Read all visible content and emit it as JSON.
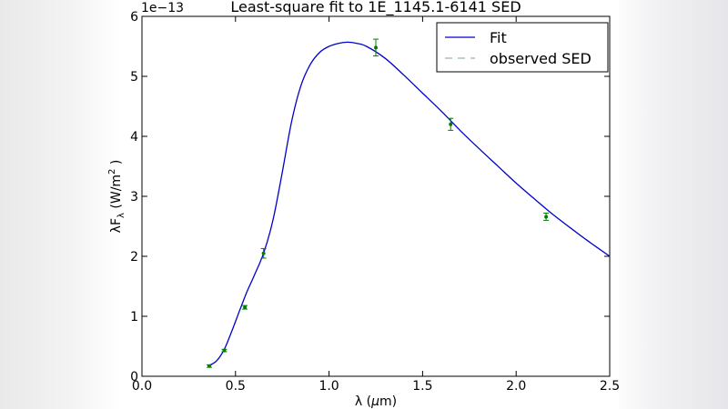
{
  "chart_data": {
    "type": "line",
    "title": "Least-square fit to 1E_1145.1-6141 SED",
    "xlabel": "λ (μm)",
    "ylabel": "λF_λ (W/m^2)",
    "ylabel_parts": {
      "main": "λF",
      "sub": "λ",
      "units": " (W/m",
      "sup": "2",
      "close": " )"
    },
    "xlabel_parts": {
      "lambda": "λ (",
      "mu": "μ",
      "unit": "m)"
    },
    "y_offset_text": "1e−13",
    "xlim": [
      0.0,
      2.5
    ],
    "ylim": [
      0,
      6
    ],
    "xticks": [
      0.0,
      0.5,
      1.0,
      1.5,
      2.0,
      2.5
    ],
    "xtick_labels": [
      "0.0",
      "0.5",
      "1.0",
      "1.5",
      "2.0",
      "2.5"
    ],
    "yticks": [
      0,
      1,
      2,
      3,
      4,
      5,
      6
    ],
    "ytick_labels": [
      "0",
      "1",
      "2",
      "3",
      "4",
      "5",
      "6"
    ],
    "grid": false,
    "legend_position": "top-right",
    "legend": [
      "Fit",
      "observed SED"
    ],
    "series": [
      {
        "name": "Fit",
        "kind": "line",
        "color": "#0000cc",
        "x": [
          0.36,
          0.4,
          0.44,
          0.48,
          0.52,
          0.56,
          0.6,
          0.65,
          0.7,
          0.75,
          0.8,
          0.85,
          0.9,
          0.95,
          1.0,
          1.05,
          1.1,
          1.15,
          1.2,
          1.3,
          1.4,
          1.5,
          1.6,
          1.7,
          1.8,
          1.9,
          2.0,
          2.1,
          2.2,
          2.3,
          2.4,
          2.5
        ],
        "y": [
          0.18,
          0.26,
          0.45,
          0.75,
          1.08,
          1.4,
          1.68,
          2.05,
          2.6,
          3.4,
          4.25,
          4.85,
          5.2,
          5.4,
          5.5,
          5.55,
          5.57,
          5.55,
          5.5,
          5.3,
          5.02,
          4.72,
          4.42,
          4.1,
          3.8,
          3.51,
          3.22,
          2.95,
          2.69,
          2.45,
          2.22,
          2.0
        ]
      },
      {
        "name": "observed SED",
        "kind": "errorbar",
        "color": "#008000",
        "x": [
          0.36,
          0.44,
          0.55,
          0.65,
          1.25,
          1.65,
          2.16
        ],
        "y": [
          0.17,
          0.43,
          1.15,
          2.05,
          5.48,
          4.2,
          2.66
        ],
        "yerr": [
          0.02,
          0.02,
          0.03,
          0.08,
          0.14,
          0.1,
          0.06
        ]
      }
    ]
  }
}
